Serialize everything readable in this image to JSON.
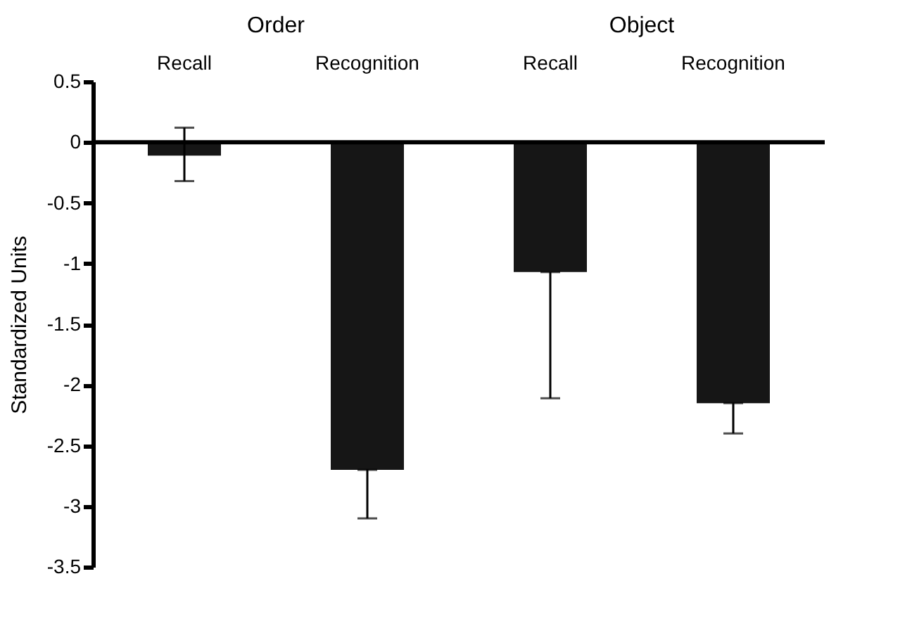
{
  "chart_data": {
    "type": "bar",
    "ylabel": "Standardized Units",
    "categories": [
      "Recall",
      "Recognition",
      "Recall",
      "Recognition"
    ],
    "values": [
      -0.11,
      -2.7,
      -1.07,
      -2.15
    ],
    "errors": [
      [
        -0.32,
        0.12
      ],
      [
        -3.1,
        -2.7
      ],
      [
        -2.11,
        -1.07
      ],
      [
        -2.4,
        -2.15
      ]
    ],
    "color": "#161616",
    "ylim": [
      -3.5,
      0.5
    ],
    "yticks": [
      0.5,
      0,
      -0.5,
      -1,
      -1.5,
      -2,
      -2.5,
      -3,
      -3.5
    ],
    "ref_lines": [
      {
        "axis": "y",
        "value": 0,
        "label": null
      }
    ],
    "annotations": [
      "Order",
      "Object"
    ],
    "grid": false
  }
}
